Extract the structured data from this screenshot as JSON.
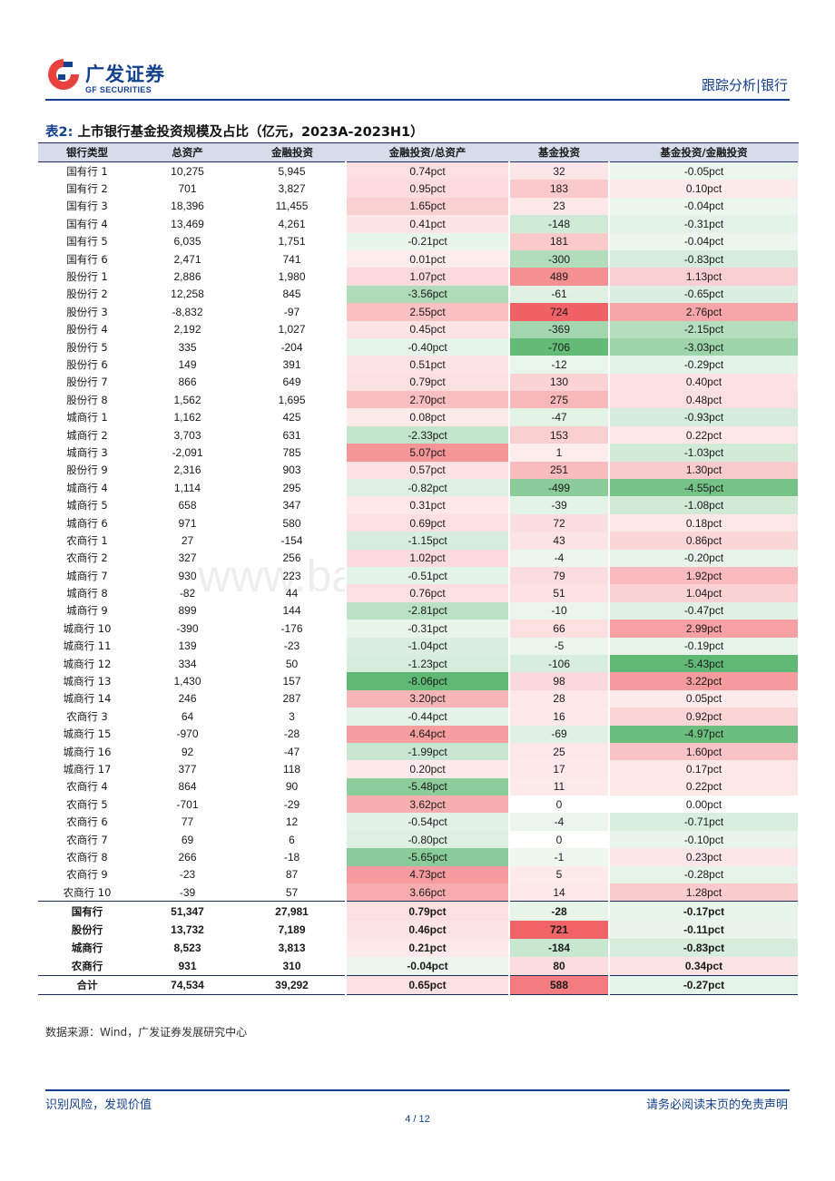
{
  "header": {
    "logo_cn": "广发证券",
    "logo_en": "GF SECURITIES",
    "section": "跟踪分析|银行",
    "brand_color": "#14418f"
  },
  "table": {
    "title_num": "表2:",
    "title_text": "上市银行基金投资规模及占比（亿元，2023A-2023H1）",
    "columns": [
      "银行类型",
      "总资产",
      "金融投资",
      "金融投资/总资产",
      "基金投资",
      "基金投资/金融投资"
    ],
    "rows": [
      [
        "国有行 1",
        "10,275",
        "5,945",
        "0.74pct",
        "32",
        "-0.05pct"
      ],
      [
        "国有行 2",
        "701",
        "3,827",
        "0.95pct",
        "183",
        "0.10pct"
      ],
      [
        "国有行 3",
        "18,396",
        "11,455",
        "1.65pct",
        "23",
        "-0.04pct"
      ],
      [
        "国有行 4",
        "13,469",
        "4,261",
        "0.41pct",
        "-148",
        "-0.31pct"
      ],
      [
        "国有行 5",
        "6,035",
        "1,751",
        "-0.21pct",
        "181",
        "-0.04pct"
      ],
      [
        "国有行 6",
        "2,471",
        "741",
        "0.01pct",
        "-300",
        "-0.83pct"
      ],
      [
        "股份行 1",
        "2,886",
        "1,980",
        "1.07pct",
        "489",
        "1.13pct"
      ],
      [
        "股份行 2",
        "12,258",
        "845",
        "-3.56pct",
        "-61",
        "-0.65pct"
      ],
      [
        "股份行 3",
        "-8,832",
        "-97",
        "2.55pct",
        "724",
        "2.76pct"
      ],
      [
        "股份行 4",
        "2,192",
        "1,027",
        "0.45pct",
        "-369",
        "-2.15pct"
      ],
      [
        "股份行 5",
        "335",
        "-204",
        "-0.40pct",
        "-706",
        "-3.03pct"
      ],
      [
        "股份行 6",
        "149",
        "391",
        "0.51pct",
        "-12",
        "-0.29pct"
      ],
      [
        "股份行 7",
        "866",
        "649",
        "0.79pct",
        "130",
        "0.40pct"
      ],
      [
        "股份行 8",
        "1,562",
        "1,695",
        "2.70pct",
        "275",
        "0.48pct"
      ],
      [
        "城商行 1",
        "1,162",
        "425",
        "0.08pct",
        "-47",
        "-0.93pct"
      ],
      [
        "城商行 2",
        "3,703",
        "631",
        "-2.33pct",
        "153",
        "0.22pct"
      ],
      [
        "城商行 3",
        "-2,091",
        "785",
        "5.07pct",
        "1",
        "-1.03pct"
      ],
      [
        "股份行 9",
        "2,316",
        "903",
        "0.57pct",
        "251",
        "1.30pct"
      ],
      [
        "城商行 4",
        "1,114",
        "295",
        "-0.82pct",
        "-499",
        "-4.55pct"
      ],
      [
        "城商行 5",
        "658",
        "347",
        "0.31pct",
        "-39",
        "-1.08pct"
      ],
      [
        "城商行 6",
        "971",
        "580",
        "0.69pct",
        "72",
        "0.18pct"
      ],
      [
        "农商行 1",
        "27",
        "-154",
        "-1.15pct",
        "43",
        "0.86pct"
      ],
      [
        "农商行 2",
        "327",
        "256",
        "1.02pct",
        "-4",
        "-0.20pct"
      ],
      [
        "城商行 7",
        "930",
        "223",
        "-0.51pct",
        "79",
        "1.92pct"
      ],
      [
        "城商行 8",
        "-82",
        "44",
        "0.76pct",
        "51",
        "1.04pct"
      ],
      [
        "城商行 9",
        "899",
        "144",
        "-2.81pct",
        "-10",
        "-0.47pct"
      ],
      [
        "城商行 10",
        "-390",
        "-176",
        "-0.31pct",
        "66",
        "2.99pct"
      ],
      [
        "城商行 11",
        "139",
        "-23",
        "-1.04pct",
        "-5",
        "-0.19pct"
      ],
      [
        "城商行 12",
        "334",
        "50",
        "-1.23pct",
        "-106",
        "-5.43pct"
      ],
      [
        "城商行 13",
        "1,430",
        "157",
        "-8.06pct",
        "98",
        "3.22pct"
      ],
      [
        "城商行 14",
        "246",
        "287",
        "3.20pct",
        "28",
        "0.05pct"
      ],
      [
        "农商行 3",
        "64",
        "3",
        "-0.44pct",
        "16",
        "0.92pct"
      ],
      [
        "城商行 15",
        "-970",
        "-28",
        "4.64pct",
        "-69",
        "-4.97pct"
      ],
      [
        "城商行 16",
        "92",
        "-47",
        "-1.99pct",
        "25",
        "1.60pct"
      ],
      [
        "城商行 17",
        "377",
        "118",
        "0.20pct",
        "17",
        "0.17pct"
      ],
      [
        "农商行 4",
        "864",
        "90",
        "-5.48pct",
        "11",
        "0.22pct"
      ],
      [
        "农商行 5",
        "-701",
        "-29",
        "3.62pct",
        "0",
        "0.00pct"
      ],
      [
        "农商行 6",
        "77",
        "12",
        "-0.54pct",
        "-4",
        "-0.71pct"
      ],
      [
        "农商行 7",
        "69",
        "6",
        "-0.80pct",
        "0",
        "-0.10pct"
      ],
      [
        "农商行 8",
        "266",
        "-18",
        "-5.65pct",
        "-1",
        "0.23pct"
      ],
      [
        "农商行 9",
        "-23",
        "87",
        "4.73pct",
        "5",
        "-0.28pct"
      ],
      [
        "农商行 10",
        "-39",
        "57",
        "3.66pct",
        "14",
        "1.28pct"
      ]
    ],
    "summary": [
      [
        "国有行",
        "51,347",
        "27,981",
        "0.79pct",
        "-28",
        "-0.17pct"
      ],
      [
        "股份行",
        "13,732",
        "7,189",
        "0.46pct",
        "721",
        "-0.11pct"
      ],
      [
        "城商行",
        "8,523",
        "3,813",
        "0.21pct",
        "-184",
        "-0.83pct"
      ],
      [
        "农商行",
        "931",
        "310",
        "-0.04pct",
        "80",
        "0.34pct"
      ]
    ],
    "total": [
      "合计",
      "74,534",
      "39,292",
      "0.65pct",
      "588",
      "-0.27pct"
    ]
  },
  "source": "数据来源：Wind，广发证券发展研究中心",
  "footer": {
    "left": "识别风险，发现价值",
    "right": "请务必阅读末页的免责声明",
    "page": "4 / 12"
  },
  "watermark": "www.baogao8.com",
  "colors": {
    "positive": "#f06266",
    "negative": "#5fb974",
    "header_bg": "#d6dcea"
  }
}
